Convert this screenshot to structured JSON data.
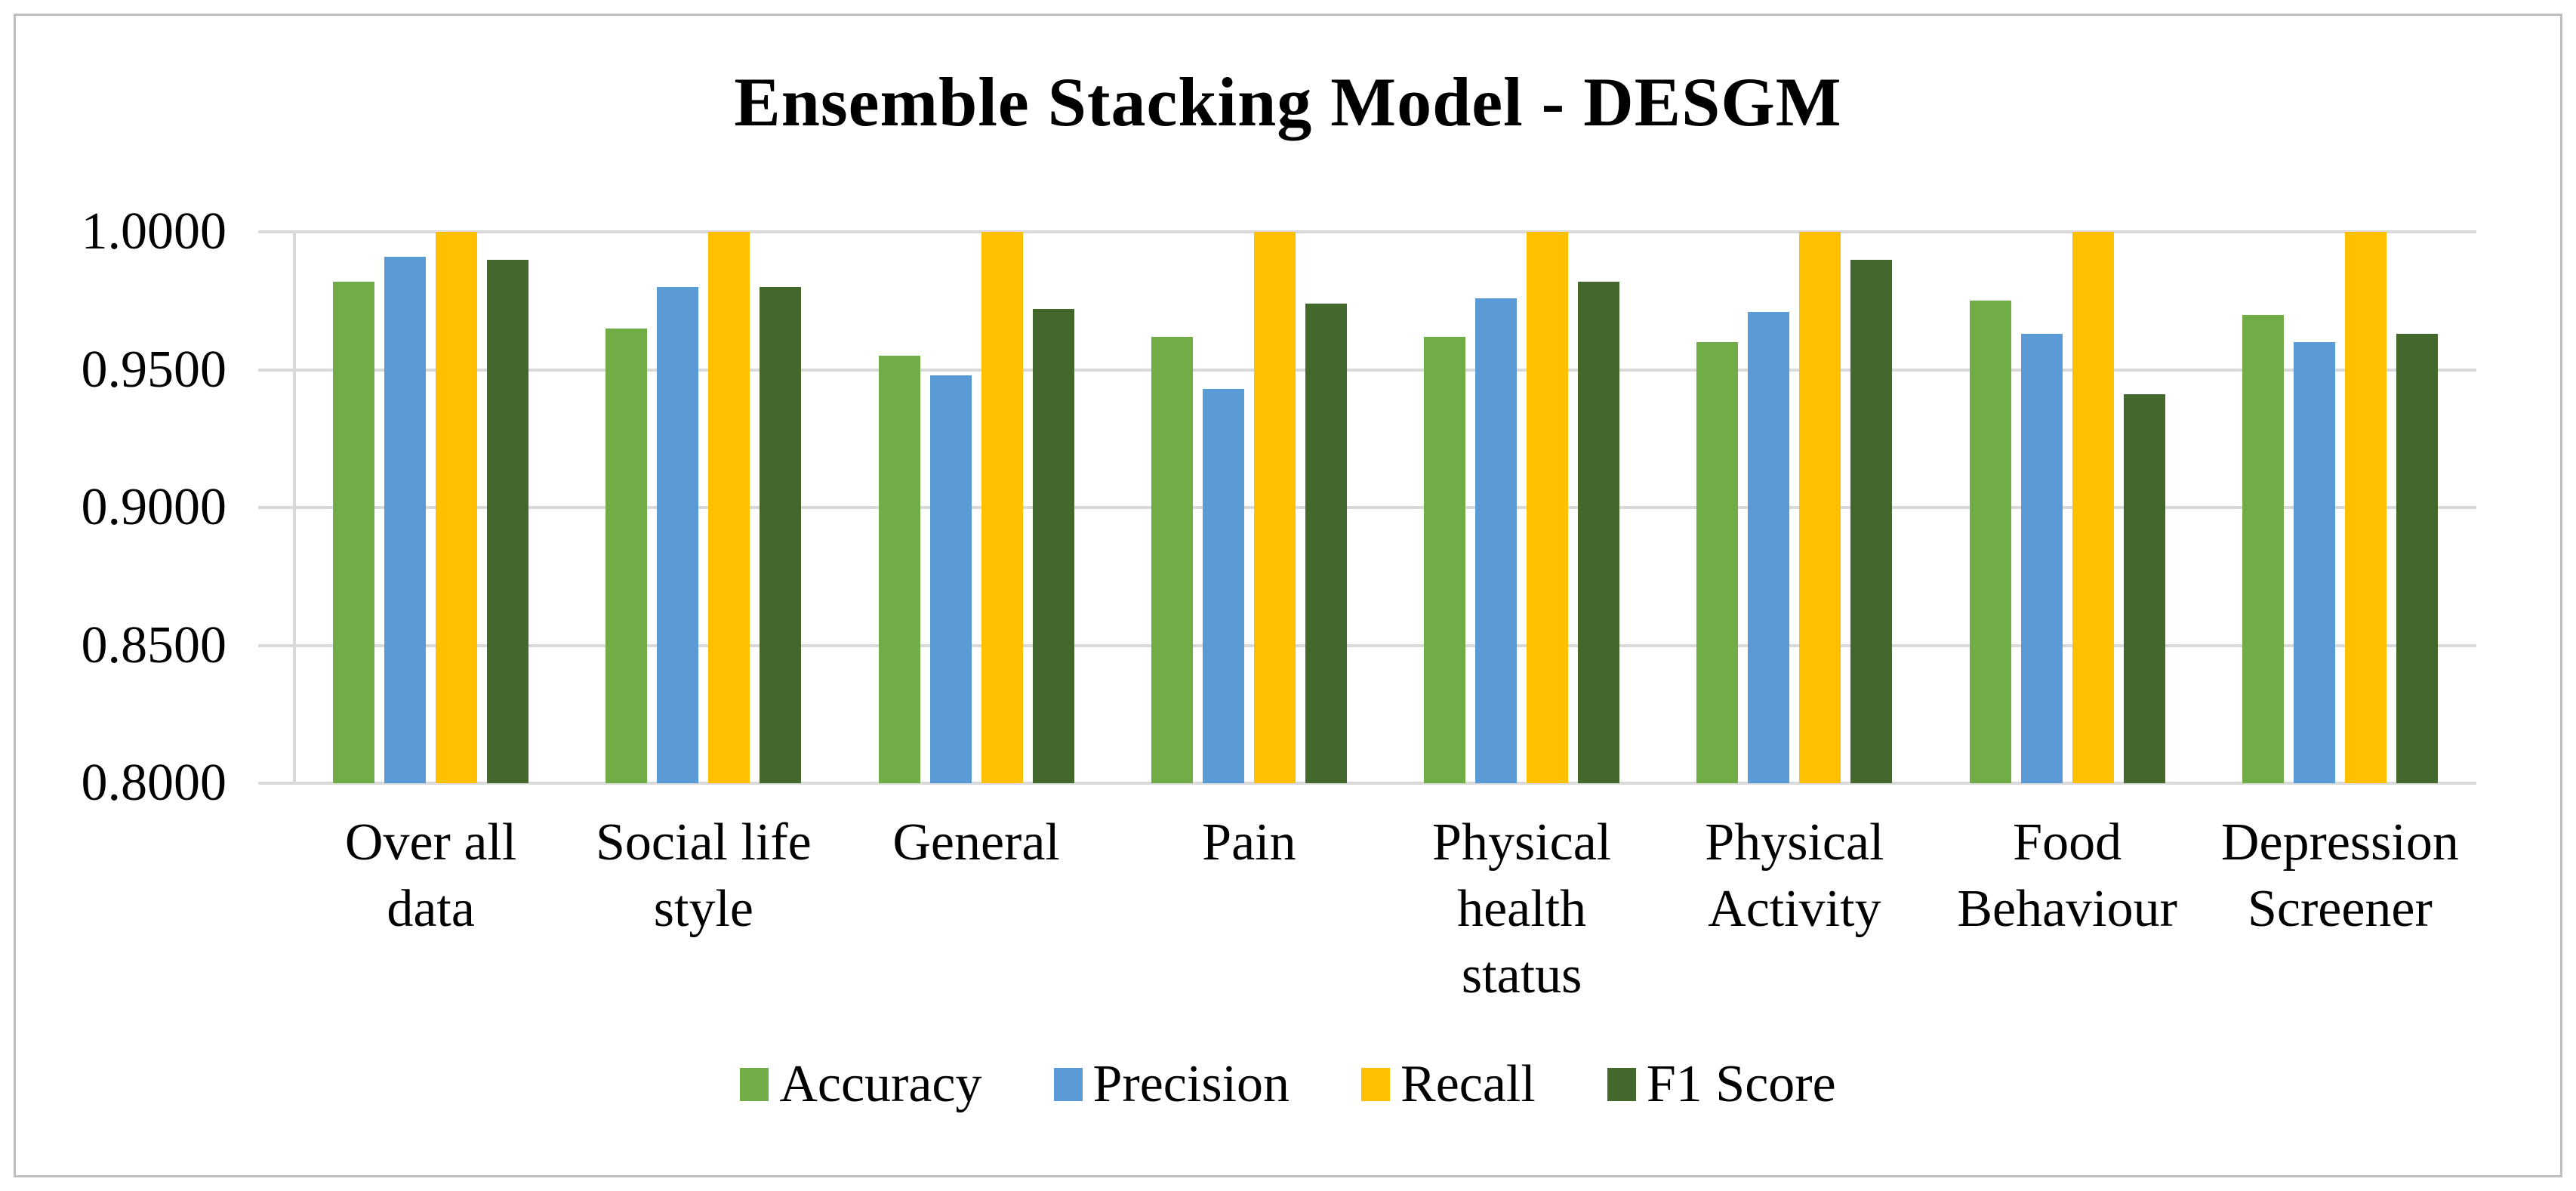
{
  "figure": {
    "border_color": "#bfbfbf",
    "background": "#ffffff",
    "text_color": "#000000",
    "gridline_color": "#d9d9d9"
  },
  "chart_data": {
    "type": "bar",
    "title": "Ensemble Stacking Model - DESGM",
    "xlabel": "",
    "ylabel": "",
    "ylim": [
      0.8,
      1.0
    ],
    "grid": true,
    "legend_position": "bottom",
    "yticks": [
      {
        "value": 1.0,
        "label": "1.0000"
      },
      {
        "value": 0.95,
        "label": "0.9500"
      },
      {
        "value": 0.9,
        "label": "0.9000"
      },
      {
        "value": 0.85,
        "label": "0.8500"
      },
      {
        "value": 0.8,
        "label": "0.8000"
      }
    ],
    "categories": [
      "Over all data",
      "Social life style",
      "General",
      "Pain",
      "Physical health status",
      "Physical Activity",
      "Food Behaviour",
      "Depression Screener"
    ],
    "category_label_lines": [
      [
        "Over all",
        "data"
      ],
      [
        "Social life",
        "style"
      ],
      [
        "General"
      ],
      [
        "Pain"
      ],
      [
        "Physical",
        "health",
        "status"
      ],
      [
        "Physical",
        "Activity"
      ],
      [
        "Food",
        "Behaviour"
      ],
      [
        "Depression",
        "Screener"
      ]
    ],
    "series": [
      {
        "name": "Accuracy",
        "color": "#70ad47",
        "values": [
          0.982,
          0.965,
          0.955,
          0.962,
          0.962,
          0.96,
          0.975,
          0.97
        ]
      },
      {
        "name": "Precision",
        "color": "#5b9bd5",
        "values": [
          0.991,
          0.98,
          0.948,
          0.943,
          0.976,
          0.971,
          0.963,
          0.96
        ]
      },
      {
        "name": "Recall",
        "color": "#ffc000",
        "values": [
          1.0,
          1.0,
          1.0,
          1.0,
          1.0,
          1.0,
          1.0,
          1.0
        ]
      },
      {
        "name": "F1 Score",
        "color": "#44682b",
        "values": [
          0.99,
          0.98,
          0.972,
          0.974,
          0.982,
          0.99,
          0.941,
          0.963
        ]
      }
    ]
  }
}
